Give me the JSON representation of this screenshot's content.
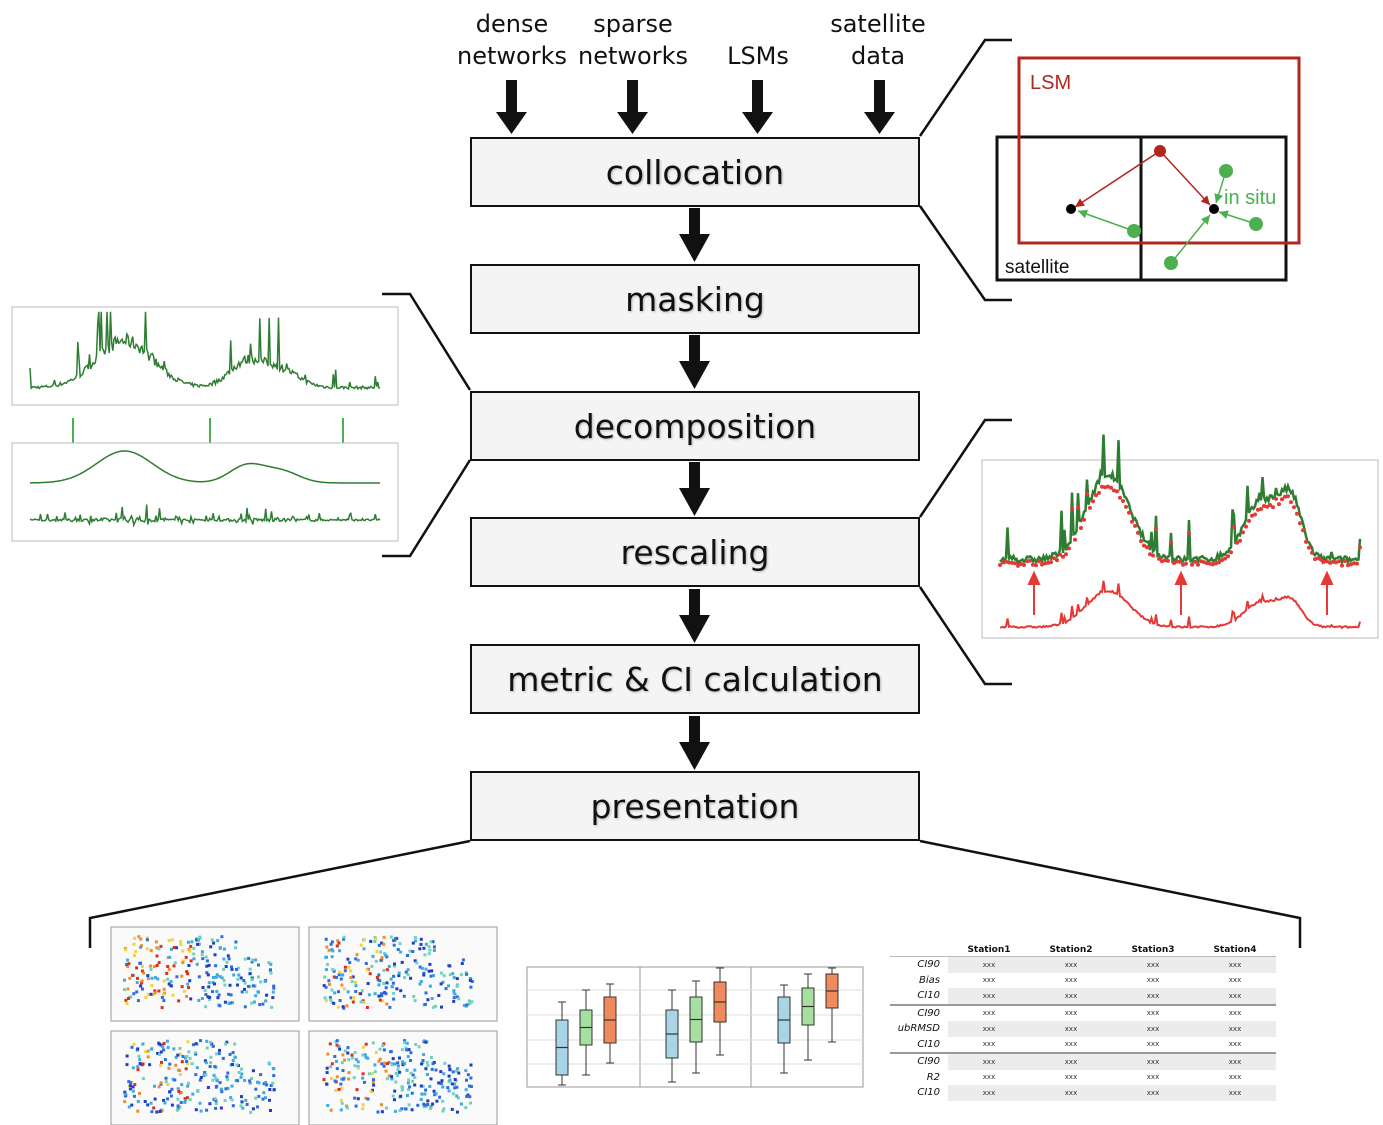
{
  "inputs": [
    {
      "line1": "dense",
      "line2": "networks"
    },
    {
      "line1": "sparse",
      "line2": "networks"
    },
    {
      "line1": "",
      "line2": "LSMs"
    },
    {
      "line1": "satellite",
      "line2": "data"
    }
  ],
  "steps": [
    "collocation",
    "masking",
    "decomposition",
    "rescaling",
    "metric & CI calculation",
    "presentation"
  ],
  "collocation_inset": {
    "lsm_label": "LSM",
    "insitu_label": "in situ",
    "satellite_label": "satellite"
  },
  "colors": {
    "lsm": "#b3261e",
    "insitu": "#4caf50",
    "series_green": "#2e7d32",
    "series_red": "#e53935",
    "box_blue": "#a8d4e6",
    "box_green": "#a5e0a0",
    "box_orange": "#f08a5d"
  },
  "table": {
    "headers": [
      "",
      "Station1",
      "Station2",
      "Station3",
      "Station4"
    ],
    "row_labels": [
      "CI90",
      "Bias",
      "CI10",
      "CI90",
      "ubRMSD",
      "CI10",
      "CI90",
      "R2",
      "CI10"
    ],
    "cell": "xxx"
  }
}
